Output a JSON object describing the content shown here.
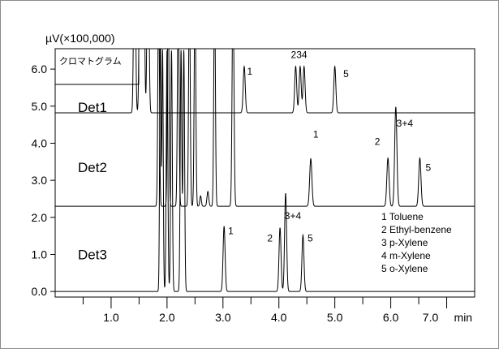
{
  "chart_data": {
    "type": "line",
    "title": "",
    "y_unit_label": "µV(×100,000)",
    "x_unit_label": "min",
    "xlim": [
      0.0,
      7.5
    ],
    "ylim": [
      -0.15,
      6.55
    ],
    "x_ticks": [
      {
        "v": 1.0,
        "label": "1.0"
      },
      {
        "v": 2.0,
        "label": "2.0"
      },
      {
        "v": 3.0,
        "label": "3.0"
      },
      {
        "v": 4.0,
        "label": "4.0"
      },
      {
        "v": 5.0,
        "label": "5.0"
      },
      {
        "v": 6.0,
        "label": "6.0"
      },
      {
        "v": 7.0,
        "label": "7.0"
      }
    ],
    "x_last_tick_label": "7.0",
    "y_ticks": [
      {
        "v": 0.0,
        "label": "0.0"
      },
      {
        "v": 1.0,
        "label": "1.0"
      },
      {
        "v": 2.0,
        "label": "2.0"
      },
      {
        "v": 3.0,
        "label": "3.0"
      },
      {
        "v": 4.0,
        "label": "4.0"
      },
      {
        "v": 5.0,
        "label": "5.0"
      },
      {
        "v": 6.0,
        "label": "6.0"
      }
    ],
    "chromatogram_box_label": "クロマトグラム",
    "series": [
      {
        "name": "Det1",
        "baseline": 4.82,
        "clip_top": 6.55,
        "peaks": [
          {
            "t": 1.42,
            "h": 6.0,
            "w": 0.016
          },
          {
            "t": 1.52,
            "h": 6.0,
            "w": 0.016
          },
          {
            "t": 1.58,
            "h": 6.0,
            "w": 0.016
          },
          {
            "t": 1.66,
            "h": 6.0,
            "w": 0.016
          },
          {
            "t": 3.38,
            "h": 1.25,
            "w": 0.018
          },
          {
            "t": 4.3,
            "h": 1.25,
            "w": 0.018
          },
          {
            "t": 4.38,
            "h": 1.25,
            "w": 0.018
          },
          {
            "t": 4.45,
            "h": 1.25,
            "w": 0.018
          },
          {
            "t": 5.0,
            "h": 1.25,
            "w": 0.018
          }
        ],
        "labels": [
          {
            "t": 3.48,
            "y": 5.85,
            "text": "1"
          },
          {
            "t": 4.36,
            "y": 6.3,
            "text": "234"
          },
          {
            "t": 5.2,
            "y": 5.78,
            "text": "5"
          }
        ]
      },
      {
        "name": "Det2",
        "baseline": 2.3,
        "clip_top": 6.55,
        "peaks": [
          {
            "t": 1.85,
            "h": 6.0,
            "w": 0.014
          },
          {
            "t": 2.02,
            "h": 6.0,
            "w": 0.014
          },
          {
            "t": 2.2,
            "h": 6.0,
            "w": 0.014
          },
          {
            "t": 2.4,
            "h": 6.0,
            "w": 0.014
          },
          {
            "t": 2.5,
            "h": 6.0,
            "w": 0.014
          },
          {
            "t": 2.6,
            "h": 0.28,
            "w": 0.014
          },
          {
            "t": 2.73,
            "h": 0.4,
            "w": 0.016
          },
          {
            "t": 2.85,
            "h": 6.0,
            "w": 0.014
          },
          {
            "t": 3.18,
            "h": 6.0,
            "w": 0.016
          },
          {
            "t": 4.57,
            "h": 1.28,
            "w": 0.02
          },
          {
            "t": 5.95,
            "h": 1.3,
            "w": 0.02
          },
          {
            "t": 6.09,
            "h": 2.68,
            "w": 0.02
          },
          {
            "t": 6.52,
            "h": 1.3,
            "w": 0.02
          }
        ],
        "labels": [
          {
            "t": 4.66,
            "y": 4.15,
            "text": "1"
          },
          {
            "t": 5.76,
            "y": 3.95,
            "text": "2"
          },
          {
            "t": 6.25,
            "y": 4.45,
            "text": "3+4"
          },
          {
            "t": 6.67,
            "y": 3.25,
            "text": "5"
          }
        ]
      },
      {
        "name": "Det3",
        "baseline": 0.0,
        "clip_top": 6.55,
        "peaks": [
          {
            "t": 1.88,
            "h": 7.0,
            "w": 0.012
          },
          {
            "t": 1.92,
            "h": 6.5,
            "w": 0.012
          },
          {
            "t": 2.0,
            "h": 6.5,
            "w": 0.014
          },
          {
            "t": 2.08,
            "h": 6.5,
            "w": 0.014
          },
          {
            "t": 2.25,
            "h": 6.5,
            "w": 0.014
          },
          {
            "t": 2.3,
            "h": 6.5,
            "w": 0.014
          },
          {
            "t": 3.02,
            "h": 1.76,
            "w": 0.018
          },
          {
            "t": 4.02,
            "h": 1.72,
            "w": 0.018
          },
          {
            "t": 4.12,
            "h": 2.65,
            "w": 0.018
          },
          {
            "t": 4.43,
            "h": 1.52,
            "w": 0.018
          }
        ],
        "labels": [
          {
            "t": 3.14,
            "y": 1.55,
            "text": "1"
          },
          {
            "t": 3.84,
            "y": 1.35,
            "text": "2"
          },
          {
            "t": 4.25,
            "y": 1.95,
            "text": "3+4"
          },
          {
            "t": 4.56,
            "y": 1.35,
            "text": "5"
          }
        ]
      }
    ],
    "legend": {
      "placement": "right",
      "items": [
        "1 Toluene",
        "2 Ethyl-benzene",
        "3 p-Xylene",
        "4 m-Xylene",
        "5 o-Xylene"
      ]
    },
    "grid": false
  }
}
